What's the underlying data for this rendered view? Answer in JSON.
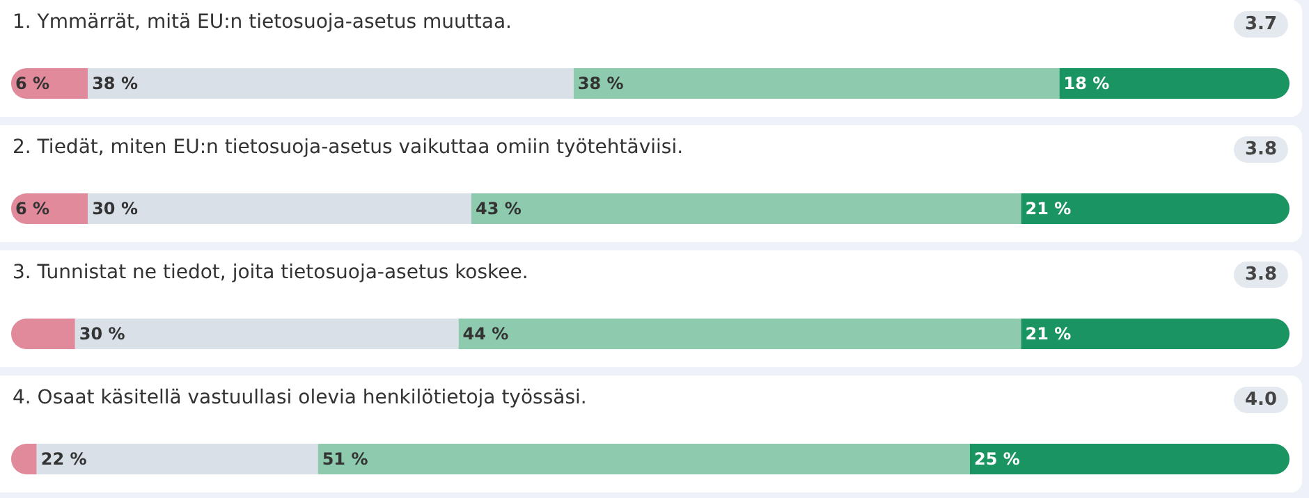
{
  "chart_data": [
    {
      "type": "bar",
      "orientation": "horizontal",
      "stacked": true,
      "title": "1. Ymmärrät, mitä EU:n tietosuoja-asetus muuttaa.",
      "annotations": [
        "3.7"
      ],
      "categories": [
        null
      ],
      "xlim": [
        0,
        100
      ],
      "tick_labels": false,
      "series": [
        {
          "color": "#e08a9b",
          "values": [
            6
          ],
          "value_labels": [
            "6 %"
          ]
        },
        {
          "color": "#d9e0e8",
          "values": [
            38
          ],
          "value_labels": [
            "38 %"
          ]
        },
        {
          "color": "#8dcaae",
          "values": [
            38
          ],
          "value_labels": [
            "38 %"
          ]
        },
        {
          "color": "#1a9461",
          "values": [
            18
          ],
          "value_labels": [
            "18 %"
          ]
        }
      ]
    },
    {
      "type": "bar",
      "orientation": "horizontal",
      "stacked": true,
      "title": "2. Tiedät, miten EU:n tietosuoja-asetus vaikuttaa omiin työtehtäviisi.",
      "annotations": [
        "3.8"
      ],
      "categories": [
        null
      ],
      "xlim": [
        0,
        100
      ],
      "tick_labels": false,
      "series": [
        {
          "color": "#e08a9b",
          "values": [
            6
          ],
          "value_labels": [
            "6 %"
          ]
        },
        {
          "color": "#d9e0e8",
          "values": [
            30
          ],
          "value_labels": [
            "30 %"
          ]
        },
        {
          "color": "#8dcaae",
          "values": [
            43
          ],
          "value_labels": [
            "43 %"
          ]
        },
        {
          "color": "#1a9461",
          "values": [
            21
          ],
          "value_labels": [
            "21 %"
          ]
        }
      ]
    },
    {
      "type": "bar",
      "orientation": "horizontal",
      "stacked": true,
      "title": "3. Tunnistat ne tiedot, joita tietosuoja-asetus koskee.",
      "annotations": [
        "3.8"
      ],
      "categories": [
        null
      ],
      "xlim": [
        0,
        100
      ],
      "tick_labels": false,
      "series": [
        {
          "color": "#e08a9b",
          "values": [
            5
          ],
          "value_labels": [
            null
          ]
        },
        {
          "color": "#d9e0e8",
          "values": [
            30
          ],
          "value_labels": [
            "30 %"
          ]
        },
        {
          "color": "#8dcaae",
          "values": [
            44
          ],
          "value_labels": [
            "44 %"
          ]
        },
        {
          "color": "#1a9461",
          "values": [
            21
          ],
          "value_labels": [
            "21 %"
          ]
        }
      ]
    },
    {
      "type": "bar",
      "orientation": "horizontal",
      "stacked": true,
      "title": "4. Osaat käsitellä vastuullasi olevia henkilötietoja työssäsi.",
      "annotations": [
        "4.0"
      ],
      "categories": [
        null
      ],
      "xlim": [
        0,
        100
      ],
      "tick_labels": false,
      "series": [
        {
          "color": "#e08a9b",
          "values": [
            2
          ],
          "value_labels": [
            null
          ]
        },
        {
          "color": "#d9e0e8",
          "values": [
            22
          ],
          "value_labels": [
            "22 %"
          ]
        },
        {
          "color": "#8dcaae",
          "values": [
            51
          ],
          "value_labels": [
            "51 %"
          ]
        },
        {
          "color": "#1a9461",
          "values": [
            25
          ],
          "value_labels": [
            "25 %"
          ]
        }
      ]
    }
  ]
}
